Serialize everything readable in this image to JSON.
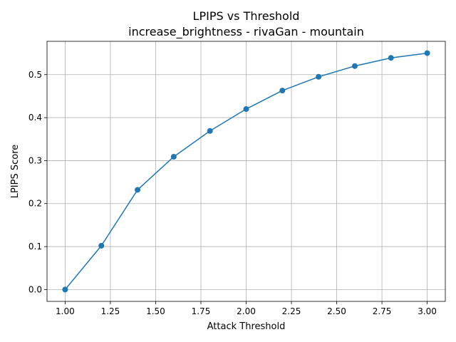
{
  "chart_data": {
    "type": "line",
    "title": "LPIPS vs Threshold",
    "subtitle": "increase_brightness - rivaGan - mountain",
    "xlabel": "Attack Threshold",
    "ylabel": "LPIPS Score",
    "xlim": [
      0.9,
      3.1
    ],
    "ylim": [
      -0.0275,
      0.5775
    ],
    "xticks": [
      1.0,
      1.25,
      1.5,
      1.75,
      2.0,
      2.25,
      2.5,
      2.75,
      3.0
    ],
    "xtick_labels": [
      "1.00",
      "1.25",
      "1.50",
      "1.75",
      "2.00",
      "2.25",
      "2.50",
      "2.75",
      "3.00"
    ],
    "yticks": [
      0.0,
      0.1,
      0.2,
      0.3,
      0.4,
      0.5
    ],
    "ytick_labels": [
      "0.0",
      "0.1",
      "0.2",
      "0.3",
      "0.4",
      "0.5"
    ],
    "grid": true,
    "line_color": "#1f77b4",
    "x": [
      1.0,
      1.2,
      1.4,
      1.6,
      1.8,
      2.0,
      2.2,
      2.4,
      2.6,
      2.8,
      3.0
    ],
    "series": [
      {
        "values": [
          0.0,
          0.102,
          0.232,
          0.309,
          0.369,
          0.42,
          0.463,
          0.495,
          0.52,
          0.539,
          0.55
        ]
      }
    ]
  }
}
